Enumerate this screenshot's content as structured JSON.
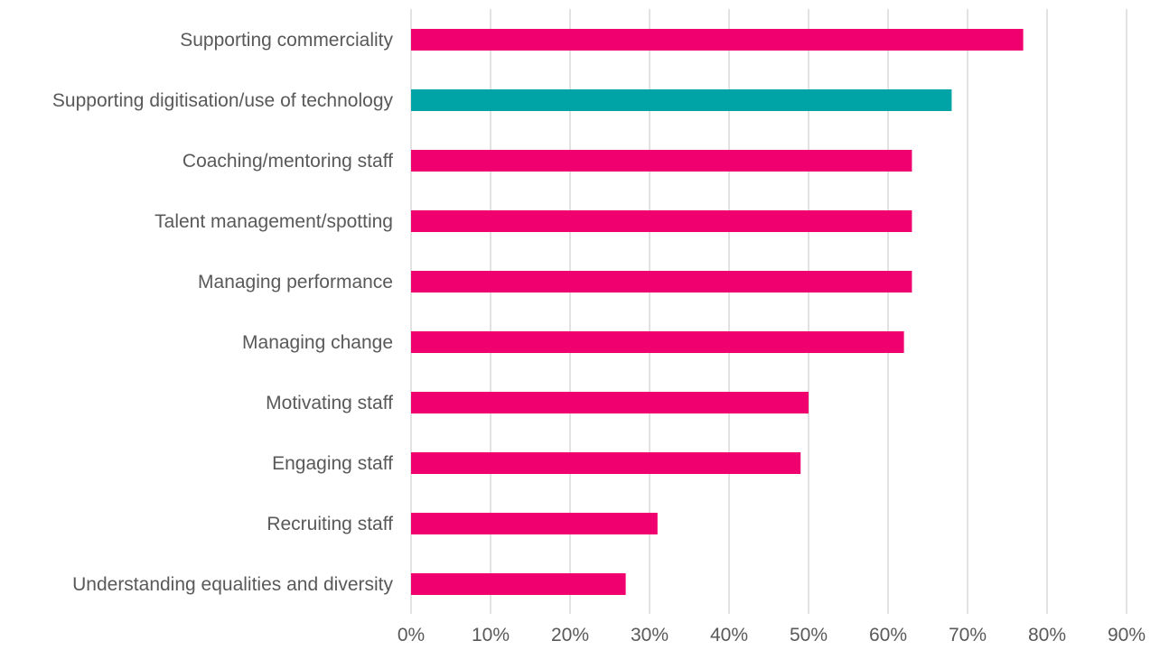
{
  "chart_data": {
    "type": "bar",
    "orientation": "horizontal",
    "categories": [
      "Supporting commerciality",
      "Supporting digitisation/use of technology",
      "Coaching/mentoring staff",
      "Talent management/spotting",
      "Managing performance",
      "Managing change",
      "Motivating staff",
      "Engaging staff",
      "Recruiting staff",
      "Understanding equalities and diversity"
    ],
    "values": [
      77,
      68,
      63,
      63,
      63,
      62,
      50,
      49,
      31,
      27
    ],
    "bar_colors": [
      "#f0006e",
      "#00a3a6",
      "#f0006e",
      "#f0006e",
      "#f0006e",
      "#f0006e",
      "#f0006e",
      "#f0006e",
      "#f0006e",
      "#f0006e"
    ],
    "xlim": [
      0,
      90
    ],
    "x_ticks": [
      "0%",
      "10%",
      "20%",
      "30%",
      "40%",
      "50%",
      "60%",
      "70%",
      "80%",
      "90%"
    ],
    "grid": "vertical",
    "legend": "none"
  }
}
